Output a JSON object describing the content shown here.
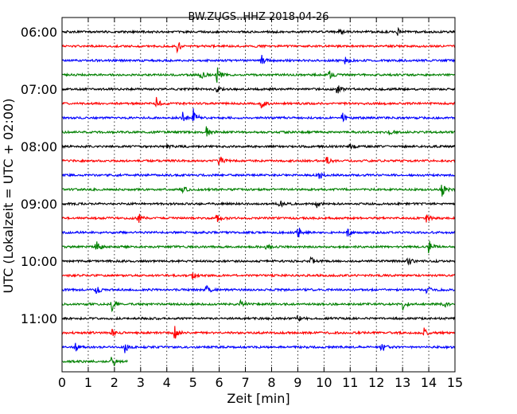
{
  "chart_data": {
    "type": "line",
    "title": "BW.ZUGS..HHZ 2018-04-26",
    "xlabel": "Zeit  [min]",
    "ylabel": "UTC (Lokalzeit = UTC + 02:00)",
    "xlim": [
      0,
      15
    ],
    "x_ticks": [
      "0",
      "1",
      "2",
      "3",
      "4",
      "5",
      "6",
      "7",
      "8",
      "9",
      "10",
      "11",
      "12",
      "13",
      "14",
      "15"
    ],
    "y_ticks": [
      "06:00",
      "07:00",
      "08:00",
      "09:00",
      "10:00",
      "11:00"
    ],
    "grid": true,
    "trace_colors": [
      "#000000",
      "#ff0000",
      "#0000ff",
      "#008000"
    ],
    "traces": [
      {
        "start": "06:00",
        "end_min": 15,
        "events": [
          [
            10.6,
            0.3
          ],
          [
            12.8,
            0.4
          ]
        ]
      },
      {
        "start": "06:15",
        "end_min": 15,
        "events": [
          [
            4.4,
            0.5
          ]
        ]
      },
      {
        "start": "06:30",
        "end_min": 15,
        "events": [
          [
            7.6,
            0.6
          ],
          [
            10.8,
            0.4
          ]
        ]
      },
      {
        "start": "06:45",
        "end_min": 15,
        "events": [
          [
            5.3,
            0.5
          ],
          [
            5.9,
            0.8
          ],
          [
            10.2,
            0.4
          ]
        ]
      },
      {
        "start": "07:00",
        "end_min": 15,
        "events": [
          [
            5.9,
            0.3
          ],
          [
            10.5,
            0.5
          ]
        ]
      },
      {
        "start": "07:15",
        "end_min": 15,
        "events": [
          [
            3.6,
            0.5
          ],
          [
            7.6,
            0.5
          ]
        ]
      },
      {
        "start": "07:30",
        "end_min": 15,
        "events": [
          [
            4.6,
            0.5
          ],
          [
            5.0,
            1.0
          ],
          [
            10.7,
            0.6
          ]
        ]
      },
      {
        "start": "07:45",
        "end_min": 15,
        "events": [
          [
            5.5,
            0.5
          ],
          [
            12.5,
            0.4
          ]
        ]
      },
      {
        "start": "08:00",
        "end_min": 15,
        "events": [
          [
            4.0,
            0.3
          ],
          [
            11.0,
            0.3
          ]
        ]
      },
      {
        "start": "08:15",
        "end_min": 15,
        "events": [
          [
            6.0,
            0.5
          ],
          [
            10.1,
            0.4
          ]
        ]
      },
      {
        "start": "08:30",
        "end_min": 15,
        "events": [
          [
            9.8,
            0.4
          ]
        ]
      },
      {
        "start": "08:45",
        "end_min": 15,
        "events": [
          [
            4.6,
            0.4
          ],
          [
            14.5,
            0.6
          ]
        ]
      },
      {
        "start": "09:00",
        "end_min": 15,
        "events": [
          [
            8.3,
            0.4
          ],
          [
            9.7,
            0.4
          ]
        ]
      },
      {
        "start": "09:15",
        "end_min": 15,
        "events": [
          [
            2.9,
            0.5
          ],
          [
            5.9,
            0.4
          ],
          [
            13.9,
            0.4
          ]
        ]
      },
      {
        "start": "09:30",
        "end_min": 15,
        "events": [
          [
            9.0,
            0.6
          ],
          [
            10.9,
            0.4
          ]
        ]
      },
      {
        "start": "09:45",
        "end_min": 15,
        "events": [
          [
            1.3,
            0.6
          ],
          [
            7.8,
            0.4
          ],
          [
            14.0,
            0.6
          ]
        ]
      },
      {
        "start": "10:00",
        "end_min": 15,
        "events": [
          [
            9.5,
            0.5
          ],
          [
            13.2,
            0.4
          ]
        ]
      },
      {
        "start": "10:15",
        "end_min": 15,
        "events": [
          [
            4.9,
            0.5
          ]
        ]
      },
      {
        "start": "10:30",
        "end_min": 15,
        "events": [
          [
            1.3,
            0.4
          ],
          [
            5.5,
            0.4
          ],
          [
            13.9,
            0.5
          ]
        ]
      },
      {
        "start": "10:45",
        "end_min": 15,
        "events": [
          [
            1.9,
            0.6
          ],
          [
            6.8,
            0.4
          ],
          [
            13.0,
            0.5
          ],
          [
            14.5,
            0.6
          ]
        ]
      },
      {
        "start": "11:00",
        "end_min": 15,
        "events": [
          [
            9.0,
            0.3
          ]
        ]
      },
      {
        "start": "11:15",
        "end_min": 15,
        "events": [
          [
            1.9,
            0.4
          ],
          [
            4.3,
            0.6
          ],
          [
            13.8,
            0.5
          ]
        ]
      },
      {
        "start": "11:30",
        "end_min": 15,
        "events": [
          [
            0.5,
            0.4
          ],
          [
            2.4,
            0.5
          ],
          [
            12.2,
            0.5
          ]
        ]
      },
      {
        "start": "11:45",
        "end_min": 2.5,
        "events": [
          [
            1.9,
            0.6
          ]
        ]
      }
    ]
  }
}
